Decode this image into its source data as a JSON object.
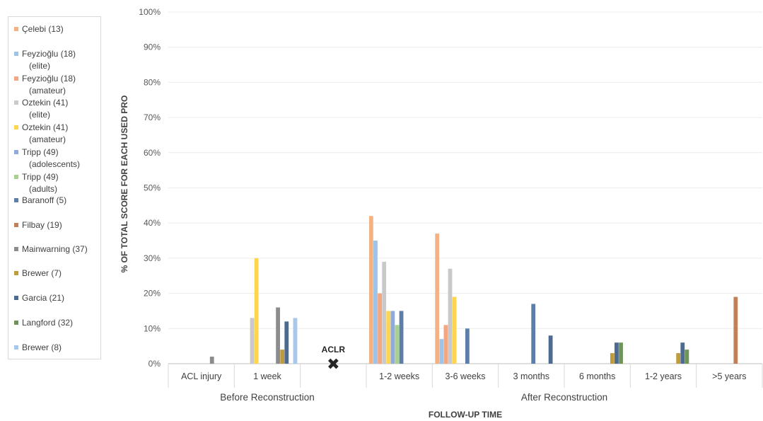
{
  "chart_data": {
    "type": "bar",
    "ylabel": "% OF TOTAL SCORE FOR EACH USED PRO",
    "xlabel": "FOLLOW-UP TIME",
    "ylim": [
      0,
      100
    ],
    "y_ticks": [
      "0%",
      "10%",
      "20%",
      "30%",
      "40%",
      "50%",
      "60%",
      "70%",
      "80%",
      "90%",
      "100%"
    ],
    "categories": [
      "ACL injury",
      "1 week",
      "",
      "1-2 weeks",
      "3-6 weeks",
      "3 months",
      "6 months",
      "1-2 years",
      ">5 years"
    ],
    "groups": [
      {
        "label": "Before Reconstruction",
        "from": 0,
        "to": 2
      },
      {
        "label": "After Reconstruction",
        "from": 3,
        "to": 8
      }
    ],
    "marker": {
      "label": "ACLR",
      "symbol": "✖",
      "category_index": 2
    },
    "grid": true,
    "legend_position": "left",
    "series": [
      {
        "name": [
          "Çelebi (13)"
        ],
        "color": "#f4b183",
        "values": [
          null,
          null,
          null,
          42,
          37,
          null,
          null,
          null,
          null
        ]
      },
      {
        "name": [
          "Feyzioğlu (18)",
          "(elite)"
        ],
        "color": "#9dc3e6",
        "values": [
          null,
          null,
          null,
          35,
          7,
          null,
          null,
          null,
          null
        ]
      },
      {
        "name": [
          "Feyzioğlu (18)",
          "(amateur)"
        ],
        "color": "#f4a582",
        "values": [
          null,
          null,
          null,
          20,
          11,
          null,
          null,
          null,
          null
        ]
      },
      {
        "name": [
          "Oztekin (41)",
          "(elite)"
        ],
        "color": "#c9c9c9",
        "values": [
          null,
          13,
          null,
          29,
          27,
          null,
          null,
          null,
          null
        ]
      },
      {
        "name": [
          "Oztekin (41)",
          "(amateur)"
        ],
        "color": "#ffd54f",
        "values": [
          null,
          30,
          null,
          15,
          19,
          null,
          null,
          null,
          null
        ]
      },
      {
        "name": [
          "Tripp (49)",
          "(adolescents)"
        ],
        "color": "#8faadc",
        "values": [
          null,
          null,
          null,
          15,
          null,
          null,
          null,
          null,
          null
        ]
      },
      {
        "name": [
          "Tripp (49)",
          "(adults)"
        ],
        "color": "#a9d18e",
        "values": [
          null,
          null,
          null,
          11,
          null,
          null,
          null,
          null,
          null
        ]
      },
      {
        "name": [
          "Baranoff (5)"
        ],
        "color": "#5b7fa6",
        "values": [
          null,
          null,
          null,
          15,
          10,
          17,
          null,
          null,
          null
        ]
      },
      {
        "name": [
          "Filbay (19)"
        ],
        "color": "#c0805a",
        "values": [
          null,
          null,
          null,
          null,
          null,
          null,
          null,
          null,
          19
        ]
      },
      {
        "name": [
          "Mainwarning (37)"
        ],
        "color": "#8c8c8c",
        "values": [
          2,
          16,
          null,
          null,
          null,
          null,
          null,
          null,
          null
        ]
      },
      {
        "name": [
          "Brewer (7)"
        ],
        "color": "#bf9b3a",
        "values": [
          null,
          4,
          null,
          null,
          null,
          null,
          3,
          3,
          null
        ]
      },
      {
        "name": [
          "Garcia (21)"
        ],
        "color": "#4d6a8f",
        "values": [
          null,
          12,
          null,
          null,
          null,
          8,
          6,
          6,
          null
        ]
      },
      {
        "name": [
          "Langford (32)"
        ],
        "color": "#6f9458",
        "values": [
          null,
          null,
          null,
          null,
          null,
          null,
          6,
          4,
          null
        ]
      },
      {
        "name": [
          "Brewer (8)"
        ],
        "color": "#a6c8ec",
        "values": [
          null,
          13,
          null,
          null,
          null,
          null,
          null,
          null,
          null
        ]
      }
    ]
  }
}
